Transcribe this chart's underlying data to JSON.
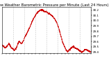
{
  "title": "Milwaukee Weather Barometric Pressure per Minute (Last 24 Hours)",
  "bg_color": "#ffffff",
  "line_color": "#cc0000",
  "grid_color": "#bbbbbb",
  "ylim": [
    29.38,
    30.26
  ],
  "yticks": [
    29.4,
    29.5,
    29.6,
    29.7,
    29.8,
    29.9,
    30.0,
    30.1,
    30.2
  ],
  "num_points": 1440,
  "pressure_profile": [
    29.53,
    29.51,
    29.49,
    29.48,
    29.5,
    29.53,
    29.56,
    29.52,
    29.48,
    29.46,
    29.44,
    29.43,
    29.45,
    29.5,
    29.56,
    29.6,
    29.58,
    29.55,
    29.58,
    29.62,
    29.68,
    29.72,
    29.76,
    29.8,
    29.85,
    29.9,
    29.95,
    30.0,
    30.05,
    30.08,
    30.12,
    30.15,
    30.17,
    30.19,
    30.2,
    30.21,
    30.2,
    30.19,
    30.17,
    30.18,
    30.16,
    30.14,
    30.13,
    30.12,
    30.1,
    30.08,
    30.05,
    30.02,
    29.98,
    29.93,
    29.87,
    29.8,
    29.72,
    29.64,
    29.57,
    29.52,
    29.47,
    29.43,
    29.4,
    29.42,
    29.44,
    29.46,
    29.48,
    29.5,
    29.49,
    29.47,
    29.46,
    29.45,
    29.43,
    29.42,
    29.4,
    29.39,
    29.41,
    29.43,
    29.45,
    29.44,
    29.42,
    29.41,
    29.4,
    29.39
  ],
  "num_gridlines": 7,
  "title_fontsize": 3.8,
  "tick_fontsize": 3.0,
  "noise_std": 0.008
}
